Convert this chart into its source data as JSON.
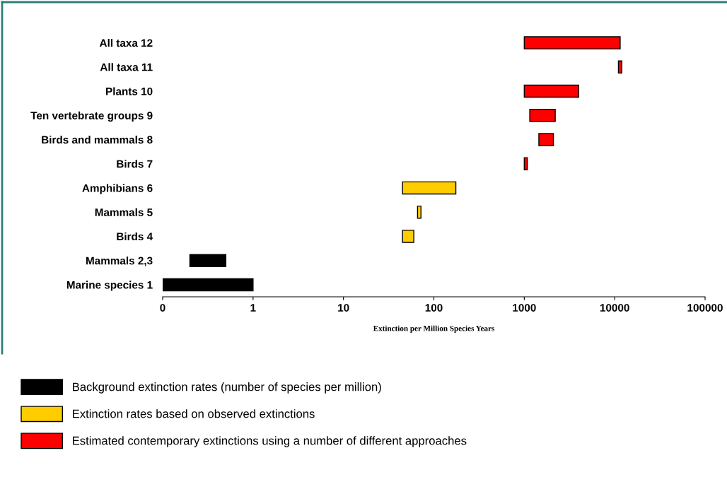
{
  "chart_data": {
    "type": "bar",
    "orientation": "horizontal",
    "log": "x",
    "xlabel": "Extinction per Million Species Years",
    "categories": [
      "All taxa 12",
      "All taxa 11",
      "Plants 10",
      "Ten vertebrate groups 9",
      "Birds and mammals 8",
      "Birds 7",
      "Amphibians 6",
      "Mammals 5",
      "Birds 4",
      "Mammals 2,3",
      "Marine species 1"
    ],
    "series": [
      {
        "name": "Background extinction rates (number of species per million)",
        "color": "#000000",
        "base": [
          null,
          null,
          null,
          null,
          null,
          null,
          null,
          null,
          null,
          0.2,
          0.1
        ],
        "values": [
          null,
          null,
          null,
          null,
          null,
          null,
          null,
          null,
          null,
          0.3,
          0.9
        ]
      },
      {
        "name": "Extinction rates based on observed extinctions",
        "color": "#ffcc00",
        "base": [
          null,
          null,
          null,
          null,
          null,
          null,
          45,
          66,
          45,
          null,
          null
        ],
        "values": [
          null,
          null,
          null,
          null,
          null,
          null,
          130,
          6,
          15,
          null,
          null
        ]
      },
      {
        "name": "Estimated contemporary extinctions using a number of different approaches",
        "color": "#ff0000",
        "base": [
          1000,
          11000,
          1000,
          1150,
          1450,
          1000,
          null,
          null,
          null,
          null,
          null
        ],
        "values": [
          10500,
          1000,
          3000,
          1050,
          650,
          80,
          null,
          null,
          null,
          null,
          null
        ]
      }
    ],
    "xlim": [
      0.1,
      100000
    ],
    "xticks": [
      {
        "value": 0.1,
        "label": "0"
      },
      1,
      10,
      100,
      1000,
      10000,
      100000
    ],
    "grid": false,
    "legend": "bottom"
  }
}
